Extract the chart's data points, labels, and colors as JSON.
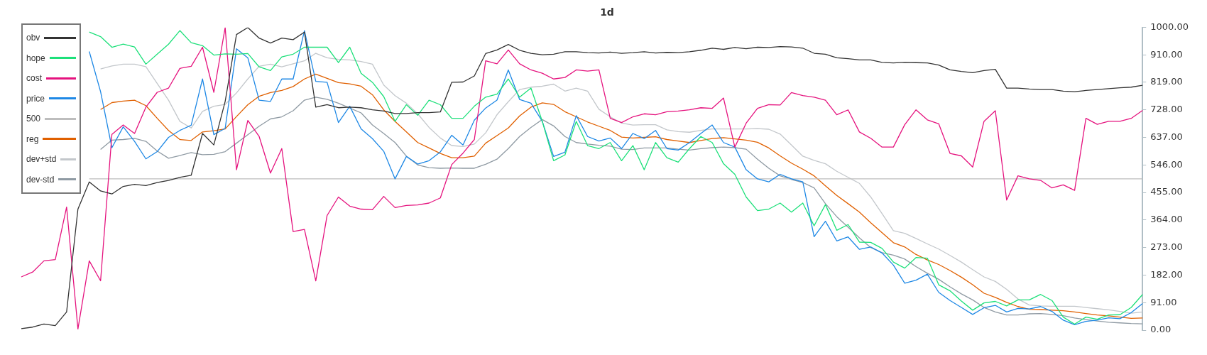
{
  "chart_data": {
    "type": "line",
    "title": "1d",
    "categories": [
      null,
      null,
      null,
      null,
      null,
      null,
      null,
      null,
      null,
      null,
      null,
      null,
      null,
      null,
      null,
      null,
      null,
      null,
      null,
      null,
      null,
      null,
      null,
      null,
      null,
      null,
      null,
      null,
      null,
      null,
      null,
      null,
      null,
      null,
      null,
      null,
      null,
      null,
      null,
      null,
      null,
      null,
      null,
      null,
      null,
      null,
      null,
      null,
      null,
      null,
      null,
      null,
      null,
      null,
      null,
      null,
      null,
      null,
      null,
      null,
      null,
      null,
      null,
      null,
      null,
      null,
      null,
      null,
      null,
      null,
      null,
      null,
      null,
      null,
      null,
      null,
      null,
      null,
      null,
      null,
      null,
      null,
      null,
      null,
      null,
      null,
      null,
      null,
      null,
      null,
      null,
      null,
      null,
      null,
      null,
      null,
      null,
      null,
      null,
      null
    ],
    "series": [
      {
        "name": "obv",
        "color": "#333333",
        "values": [
          5,
          10,
          20,
          15,
          60,
          400,
          490,
          460,
          450,
          475,
          482,
          478,
          488,
          495,
          505,
          512,
          650,
          612,
          756,
          977,
          1000,
          965,
          949,
          965,
          960,
          985,
          737,
          745,
          735,
          737,
          735,
          728,
          724,
          716,
          716,
          719,
          719,
          721,
          819,
          820,
          840,
          914,
          926,
          944,
          925,
          915,
          910,
          912,
          920,
          920,
          917,
          916,
          919,
          915,
          917,
          920,
          916,
          918,
          917,
          920,
          925,
          932,
          928,
          934,
          930,
          935,
          934,
          937,
          936,
          932,
          915,
          912,
          900,
          897,
          893,
          893,
          885,
          883,
          885,
          884,
          883,
          876,
          860,
          855,
          851,
          858,
          862,
          800,
          800,
          797,
          795,
          795,
          790,
          788,
          792,
          795,
          798,
          801,
          803,
          809
        ]
      },
      {
        "name": "hope",
        "color": "#1de07a",
        "values": [
          null,
          null,
          null,
          null,
          null,
          null,
          985,
          970,
          935,
          945,
          936,
          879,
          912,
          945,
          990,
          950,
          940,
          909,
          913,
          912,
          914,
          870,
          858,
          903,
          912,
          935,
          935,
          935,
          884,
          935,
          849,
          819,
          772,
          690,
          745,
          710,
          760,
          745,
          700,
          700,
          740,
          770,
          780,
          830,
          770,
          800,
          690,
          560,
          579,
          690,
          610,
          600,
          620,
          560,
          610,
          530,
          620,
          570,
          555,
          600,
          640,
          620,
          550,
          515,
          440,
          395,
          400,
          420,
          390,
          420,
          345,
          415,
          330,
          349,
          291,
          290,
          270,
          225,
          205,
          240,
          238,
          150,
          130,
          96,
          66,
          90,
          95,
          80,
          100,
          100,
          118,
          98,
          43,
          20,
          43,
          36,
          50,
          51,
          75,
          118
        ]
      },
      {
        "name": "cost",
        "color": "#e5137e",
        "values": [
          176,
          192,
          229,
          233,
          407,
          4,
          229,
          163,
          647,
          678,
          650,
          737,
          786,
          800,
          865,
          872,
          935,
          786,
          1000,
          530,
          693,
          640,
          519,
          600,
          326,
          333,
          163,
          379,
          440,
          410,
          400,
          398,
          442,
          405,
          412,
          414,
          420,
          437,
          547,
          585,
          630,
          890,
          880,
          926,
          880,
          860,
          849,
          830,
          835,
          860,
          856,
          860,
          700,
          686,
          705,
          715,
          712,
          722,
          724,
          728,
          735,
          733,
          767,
          605,
          684,
          733,
          745,
          744,
          785,
          775,
          770,
          760,
          712,
          728,
          655,
          634,
          605,
          605,
          679,
          728,
          695,
          682,
          584,
          576,
          539,
          690,
          725,
          430,
          510,
          500,
          495,
          470,
          480,
          462,
          700,
          680,
          690,
          690,
          700,
          726
        ]
      },
      {
        "name": "price",
        "color": "#1e88e5",
        "values": [
          null,
          null,
          null,
          null,
          null,
          null,
          921,
          788,
          603,
          672,
          624,
          566,
          590,
          637,
          660,
          677,
          830,
          646,
          667,
          930,
          900,
          760,
          756,
          830,
          830,
          990,
          822,
          819,
          686,
          740,
          665,
          633,
          591,
          500,
          574,
          549,
          560,
          589,
          644,
          612,
          694,
          734,
          760,
          860,
          762,
          750,
          690,
          574,
          588,
          709,
          640,
          625,
          635,
          600,
          650,
          633,
          660,
          600,
          595,
          620,
          650,
          678,
          620,
          605,
          530,
          500,
          490,
          515,
          500,
          490,
          309,
          360,
          295,
          308,
          267,
          275,
          255,
          215,
          155,
          165,
          185,
          125,
          98,
          75,
          52,
          74,
          82,
          60,
          72,
          70,
          78,
          62,
          33,
          18,
          29,
          33,
          41,
          38,
          58,
          88
        ]
      },
      {
        "name": "500",
        "color": "#bdbdbd",
        "values": [
          null,
          null,
          null,
          null,
          null,
          null,
          500,
          500,
          500,
          500,
          500,
          500,
          500,
          500,
          500,
          500,
          500,
          500,
          500,
          500,
          500,
          500,
          500,
          500,
          500,
          500,
          500,
          500,
          500,
          500,
          500,
          500,
          500,
          500,
          500,
          500,
          500,
          500,
          500,
          500,
          500,
          500,
          500,
          500,
          500,
          500,
          500,
          500,
          500,
          500,
          500,
          500,
          500,
          500,
          500,
          500,
          500,
          500,
          500,
          500,
          500,
          500,
          500,
          500,
          500,
          500,
          500,
          500,
          500,
          500,
          500,
          500,
          500,
          500,
          500,
          500,
          500,
          500,
          500,
          500,
          500,
          500,
          500,
          500,
          500,
          500,
          500,
          500,
          500,
          500,
          500,
          500,
          500,
          500,
          500,
          500,
          500,
          500,
          500,
          500
        ]
      },
      {
        "name": "reg",
        "color": "#e06000",
        "values": [
          null,
          null,
          null,
          null,
          null,
          null,
          null,
          729,
          752,
          757,
          760,
          742,
          700,
          660,
          630,
          627,
          655,
          659,
          665,
          706,
          745,
          773,
          785,
          792,
          805,
          830,
          846,
          832,
          818,
          814,
          806,
          778,
          728,
          690,
          655,
          620,
          602,
          584,
          570,
          570,
          575,
          618,
          643,
          668,
          708,
          737,
          751,
          746,
          722,
          705,
          688,
          674,
          660,
          638,
          635,
          637,
          639,
          630,
          625,
          620,
          627,
          633,
          636,
          632,
          628,
          621,
          602,
          576,
          552,
          532,
          510,
          477,
          445,
          418,
          390,
          355,
          322,
          289,
          275,
          250,
          232,
          217,
          197,
          175,
          150,
          122,
          108,
          92,
          78,
          69,
          68,
          66,
          64,
          60,
          55,
          50,
          47,
          43,
          39,
          40
        ]
      },
      {
        "name": "dev+std",
        "color": "#c3c7cb",
        "values": [
          null,
          null,
          null,
          null,
          null,
          null,
          null,
          863,
          873,
          879,
          879,
          871,
          815,
          760,
          690,
          668,
          723,
          740,
          746,
          784,
          830,
          872,
          879,
          870,
          880,
          890,
          915,
          900,
          895,
          893,
          888,
          879,
          810,
          775,
          750,
          715,
          670,
          635,
          610,
          607,
          615,
          652,
          712,
          755,
          795,
          803,
          806,
          813,
          790,
          800,
          790,
          730,
          705,
          684,
          678,
          679,
          679,
          662,
          656,
          654,
          660,
          665,
          665,
          665,
          665,
          666,
          664,
          648,
          612,
          575,
          561,
          550,
          525,
          505,
          485,
          440,
          385,
          329,
          320,
          303,
          285,
          268,
          247,
          225,
          200,
          176,
          161,
          135,
          103,
          83,
          80,
          79,
          79,
          79,
          75,
          71,
          67,
          62,
          56,
          60
        ]
      },
      {
        "name": "dev-std",
        "color": "#8f9aa3",
        "values": [
          null,
          null,
          null,
          null,
          null,
          null,
          null,
          597,
          628,
          630,
          634,
          624,
          592,
          568,
          577,
          587,
          580,
          581,
          590,
          618,
          646,
          674,
          698,
          705,
          725,
          760,
          770,
          763,
          750,
          734,
          718,
          678,
          650,
          620,
          575,
          546,
          537,
          535,
          536,
          535,
          535,
          548,
          565,
          600,
          640,
          670,
          696,
          675,
          640,
          620,
          615,
          611,
          608,
          598,
          597,
          602,
          602,
          602,
          598,
          595,
          600,
          603,
          605,
          603,
          598,
          565,
          535,
          510,
          498,
          488,
          470,
          418,
          375,
          340,
          305,
          273,
          256,
          248,
          235,
          210,
          188,
          168,
          143,
          120,
          100,
          75,
          60,
          50,
          50,
          54,
          55,
          52,
          48,
          40,
          35,
          30,
          26,
          24,
          22,
          21
        ]
      }
    ],
    "ylim": [
      0,
      1000
    ],
    "yticks": [
      {
        "value": 0,
        "label": "0.00"
      },
      {
        "value": 91,
        "label": "91.00"
      },
      {
        "value": 182,
        "label": "182.00"
      },
      {
        "value": 273,
        "label": "273.00"
      },
      {
        "value": 364,
        "label": "364.00"
      },
      {
        "value": 455,
        "label": "455.00"
      },
      {
        "value": 546,
        "label": "546.00"
      },
      {
        "value": 637,
        "label": "637.00"
      },
      {
        "value": 728,
        "label": "728.00"
      },
      {
        "value": 819,
        "label": "819.00"
      },
      {
        "value": 910,
        "label": "910.00"
      },
      {
        "value": 1000,
        "label": "1000.00"
      }
    ],
    "tick_labels": "y",
    "grid": false,
    "legend": "top left"
  }
}
